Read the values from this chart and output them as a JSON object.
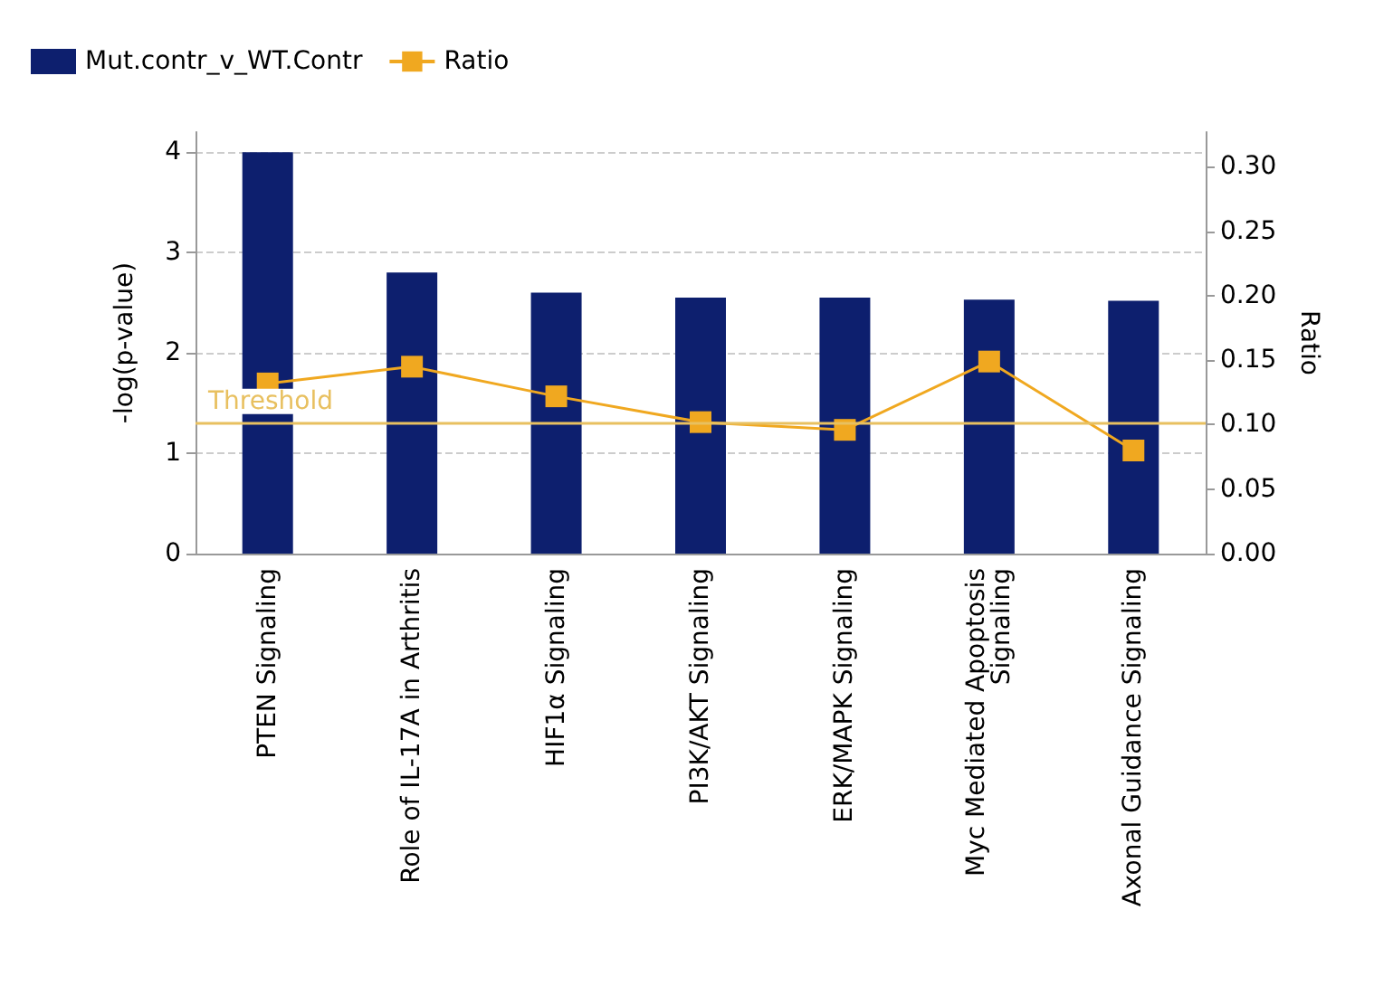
{
  "chart_data": {
    "type": "bar",
    "categories": [
      "PTEN Signaling",
      "Role of IL-17A in Arthritis",
      "HIF1α Signaling",
      "PI3K/AKT Signaling",
      "ERK/MAPK Signaling",
      "Myc Mediated Apoptosis\nSignaling",
      "Axonal Guidance Signaling"
    ],
    "series": [
      {
        "name": "Mut.contr_v_WT.Contr",
        "color": "#0d1f6e",
        "values": [
          4.0,
          2.8,
          2.6,
          2.55,
          2.55,
          2.53,
          2.52
        ]
      },
      {
        "name": "Ratio",
        "type": "line",
        "axis": "y2",
        "color": "#f0a820",
        "marker": "square",
        "values": [
          0.132,
          0.145,
          0.122,
          0.102,
          0.096,
          0.149,
          0.08
        ]
      }
    ],
    "ylabel": "-log(p-value)",
    "y2label": "Ratio",
    "ylim": [
      0,
      4.2
    ],
    "yticks": [
      0,
      1,
      2,
      3,
      4
    ],
    "y2lim": [
      0,
      0.327
    ],
    "y2ticks": [
      {
        "value": 0,
        "label": "0.00"
      },
      {
        "value": 0.05,
        "label": "0.05"
      },
      {
        "value": 0.1,
        "label": "0.10"
      },
      {
        "value": 0.15,
        "label": "0.15"
      },
      {
        "value": 0.2,
        "label": "0.20"
      },
      {
        "value": 0.25,
        "label": "0.25"
      },
      {
        "value": 0.3,
        "label": "0.30"
      }
    ],
    "ref_lines": [
      {
        "axis": "y",
        "value": 1.3,
        "label": "Threshold",
        "color": "#e8c060"
      }
    ],
    "grid": "y",
    "legend": "top left"
  }
}
